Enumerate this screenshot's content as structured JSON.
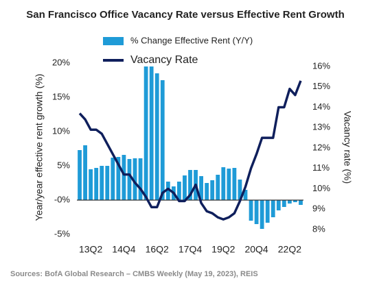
{
  "chart_data": {
    "type": "bar_line",
    "title": "San Francisco Office Vacancy Rate versus Effective Rent Growth",
    "y_label": "Year/year effective rent growth (%)",
    "y2_label": "Vacancy rate (%)",
    "source": "Sources: BofA Global Research – CMBS Weekly (May 19, 2023), REIS",
    "categories": [
      null,
      null,
      "13Q2",
      null,
      null,
      null,
      null,
      null,
      "14Q4",
      null,
      null,
      null,
      null,
      null,
      "16Q2",
      null,
      null,
      null,
      null,
      null,
      "17Q4",
      null,
      null,
      null,
      null,
      null,
      "19Q2",
      null,
      null,
      null,
      null,
      null,
      "20Q4",
      null,
      null,
      null,
      null,
      null,
      "22Q2",
      null,
      null
    ],
    "series": [
      {
        "name": "% Change Effective Rent (Y/Y)",
        "type": "bar",
        "color": "#1f9bd7",
        "values": [
          7.3,
          8.0,
          4.5,
          4.7,
          5.0,
          5.0,
          6.2,
          6.3,
          6.6,
          6.0,
          6.1,
          6.1,
          19.5,
          19.5,
          18.5,
          17.5,
          2.7,
          2.0,
          2.7,
          3.6,
          4.4,
          4.4,
          3.5,
          2.5,
          2.9,
          3.7,
          4.8,
          4.6,
          4.7,
          3.0,
          1.5,
          -3.0,
          -3.5,
          -4.2,
          -3.3,
          -2.5,
          -1.5,
          -1.0,
          -0.5,
          -0.3,
          -0.7
        ]
      },
      {
        "name": "Vacancy Rate",
        "type": "line",
        "axis": "y2",
        "color": "#0f1f5c",
        "values": [
          13.7,
          13.4,
          12.9,
          12.9,
          12.7,
          12.2,
          11.7,
          11.2,
          10.7,
          10.7,
          10.3,
          10.0,
          9.6,
          9.1,
          9.1,
          9.8,
          10.0,
          9.8,
          9.4,
          9.4,
          9.7,
          10.2,
          9.3,
          8.9,
          8.8,
          8.6,
          8.5,
          8.6,
          8.8,
          9.4,
          10.1,
          11.0,
          11.7,
          12.5,
          12.5,
          12.5,
          14.0,
          14.0,
          14.9,
          14.6,
          15.3
        ]
      }
    ],
    "ylim": [
      -5,
      20
    ],
    "yticks": [
      {
        "value": -5,
        "label": "-5%"
      },
      {
        "value": 0,
        "label": "-0%"
      },
      {
        "value": 5,
        "label": "5%"
      },
      {
        "value": 10,
        "label": "10%"
      },
      {
        "value": 15,
        "label": "15%"
      },
      {
        "value": 20,
        "label": "20%"
      }
    ],
    "y2lim": [
      8,
      16
    ],
    "y2ticks": [
      {
        "value": 8,
        "label": "8%"
      },
      {
        "value": 9,
        "label": "9%"
      },
      {
        "value": 10,
        "label": "10%"
      },
      {
        "value": 11,
        "label": "11%"
      },
      {
        "value": 12,
        "label": "12%"
      },
      {
        "value": 13,
        "label": "13%"
      },
      {
        "value": 14,
        "label": "14%"
      },
      {
        "value": 15,
        "label": "15%"
      },
      {
        "value": 16,
        "label": "16%"
      }
    ],
    "grid": false
  }
}
